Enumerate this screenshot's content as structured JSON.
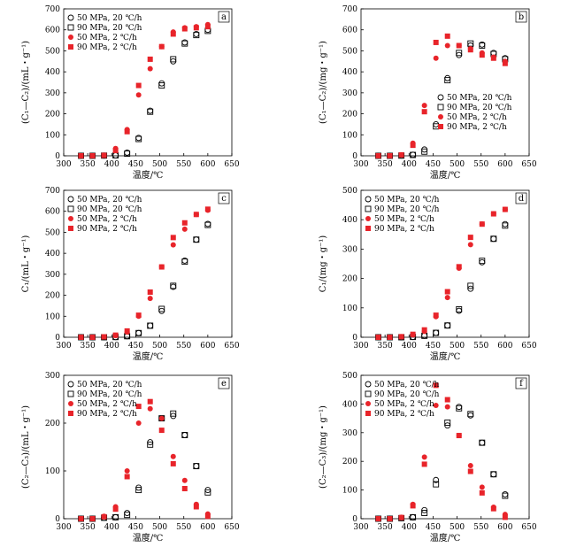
{
  "chart_data": [
    {
      "type": "scatter",
      "panel_label": "a",
      "xlabel": "温度/℃",
      "ylabel": "(C₁—C₂)/(mL・g⁻¹)",
      "xlim": [
        300,
        650
      ],
      "ylim": [
        0,
        700
      ],
      "x_ticks": [
        300,
        350,
        400,
        450,
        500,
        550,
        600,
        650
      ],
      "y_ticks": [
        0,
        100,
        200,
        300,
        400,
        500,
        600,
        700
      ],
      "legend_position": "top-left",
      "series": [
        {
          "name": "50 MPa, 20 ℃/h",
          "marker": "open-circle",
          "x": [
            336,
            360,
            384,
            408,
            432,
            456,
            480,
            504,
            528,
            552,
            576,
            600
          ],
          "y": [
            0,
            0,
            1,
            2,
            15,
            85,
            215,
            345,
            450,
            540,
            580,
            600
          ]
        },
        {
          "name": "90 MPa, 20 ℃/h",
          "marker": "open-square",
          "x": [
            336,
            360,
            384,
            408,
            432,
            456,
            480,
            504,
            528,
            552,
            576,
            600
          ],
          "y": [
            0,
            0,
            1,
            2,
            10,
            80,
            210,
            335,
            460,
            535,
            575,
            595
          ]
        },
        {
          "name": "50 MPa, 2 ℃/h",
          "marker": "filled-circle",
          "x": [
            336,
            360,
            384,
            408,
            432,
            456,
            480,
            504,
            528,
            552,
            576,
            600
          ],
          "y": [
            0,
            0,
            3,
            35,
            125,
            290,
            415,
            520,
            590,
            610,
            615,
            625
          ]
        },
        {
          "name": "90 MPa, 2 ℃/h",
          "marker": "filled-square",
          "x": [
            336,
            360,
            384,
            408,
            432,
            456,
            480,
            504,
            528,
            552,
            576,
            600
          ],
          "y": [
            0,
            0,
            2,
            25,
            115,
            335,
            460,
            520,
            580,
            605,
            610,
            615
          ]
        }
      ]
    },
    {
      "type": "scatter",
      "panel_label": "b",
      "xlabel": "温度/℃",
      "ylabel": "(C₁—C₂)/(mg・g⁻¹)",
      "xlim": [
        300,
        650
      ],
      "ylim": [
        0,
        700
      ],
      "x_ticks": [
        300,
        350,
        400,
        450,
        500,
        550,
        600,
        650
      ],
      "y_ticks": [
        0,
        100,
        200,
        300,
        400,
        500,
        600,
        700
      ],
      "legend_position": "bottom-center",
      "series": [
        {
          "name": "50 MPa, 20 ℃/h",
          "marker": "open-circle",
          "x": [
            336,
            360,
            384,
            408,
            432,
            456,
            480,
            504,
            528,
            552,
            576,
            600
          ],
          "y": [
            0,
            0,
            1,
            5,
            30,
            150,
            370,
            480,
            525,
            530,
            490,
            465
          ]
        },
        {
          "name": "90 MPa, 20 ℃/h",
          "marker": "open-square",
          "x": [
            336,
            360,
            384,
            408,
            432,
            456,
            480,
            504,
            528,
            552,
            576,
            600
          ],
          "y": [
            0,
            0,
            1,
            4,
            20,
            140,
            360,
            490,
            535,
            525,
            485,
            460
          ]
        },
        {
          "name": "50 MPa, 2 ℃/h",
          "marker": "filled-circle",
          "x": [
            336,
            360,
            384,
            408,
            432,
            456,
            480,
            504,
            528,
            552,
            576,
            600
          ],
          "y": [
            0,
            0,
            5,
            60,
            240,
            465,
            525,
            525,
            510,
            490,
            470,
            450
          ]
        },
        {
          "name": "90 MPa, 2 ℃/h",
          "marker": "filled-square",
          "x": [
            336,
            360,
            384,
            408,
            432,
            456,
            480,
            504,
            528,
            552,
            576,
            600
          ],
          "y": [
            0,
            0,
            4,
            50,
            210,
            540,
            570,
            525,
            505,
            480,
            465,
            440
          ]
        }
      ]
    },
    {
      "type": "scatter",
      "panel_label": "c",
      "xlabel": "温度/℃",
      "ylabel": "C₁/(mL・g⁻¹)",
      "xlim": [
        300,
        650
      ],
      "ylim": [
        0,
        700
      ],
      "x_ticks": [
        300,
        350,
        400,
        450,
        500,
        550,
        600,
        650
      ],
      "y_ticks": [
        0,
        100,
        200,
        300,
        400,
        500,
        600,
        700
      ],
      "legend_position": "top-left",
      "series": [
        {
          "name": "50 MPa, 20 ℃/h",
          "marker": "open-circle",
          "x": [
            336,
            360,
            384,
            408,
            432,
            456,
            480,
            504,
            528,
            552,
            576,
            600
          ],
          "y": [
            0,
            0,
            0,
            1,
            5,
            20,
            55,
            125,
            240,
            365,
            465,
            540
          ]
        },
        {
          "name": "90 MPa, 20 ℃/h",
          "marker": "open-square",
          "x": [
            336,
            360,
            384,
            408,
            432,
            456,
            480,
            504,
            528,
            552,
            576,
            600
          ],
          "y": [
            0,
            0,
            0,
            1,
            5,
            20,
            55,
            135,
            245,
            360,
            465,
            535
          ]
        },
        {
          "name": "50 MPa, 2 ℃/h",
          "marker": "filled-circle",
          "x": [
            336,
            360,
            384,
            408,
            432,
            456,
            480,
            504,
            528,
            552,
            576,
            600
          ],
          "y": [
            0,
            0,
            2,
            8,
            25,
            100,
            185,
            335,
            440,
            515,
            585,
            605
          ]
        },
        {
          "name": "90 MPa, 2 ℃/h",
          "marker": "filled-square",
          "x": [
            336,
            360,
            384,
            408,
            432,
            456,
            480,
            504,
            528,
            552,
            576,
            600
          ],
          "y": [
            0,
            0,
            2,
            10,
            30,
            105,
            215,
            335,
            475,
            545,
            585,
            610
          ]
        }
      ]
    },
    {
      "type": "scatter",
      "panel_label": "d",
      "xlabel": "温度/℃",
      "ylabel": "C₁/(mg・g⁻¹)",
      "xlim": [
        300,
        650
      ],
      "ylim": [
        0,
        500
      ],
      "x_ticks": [
        300,
        350,
        400,
        450,
        500,
        550,
        600,
        650
      ],
      "y_ticks": [
        0,
        100,
        200,
        300,
        400,
        500
      ],
      "legend_position": "top-left",
      "series": [
        {
          "name": "50 MPa, 20 ℃/h",
          "marker": "open-circle",
          "x": [
            336,
            360,
            384,
            408,
            432,
            456,
            480,
            504,
            528,
            552,
            576,
            600
          ],
          "y": [
            0,
            0,
            0,
            1,
            5,
            15,
            40,
            90,
            165,
            255,
            335,
            385
          ]
        },
        {
          "name": "90 MPa, 20 ℃/h",
          "marker": "open-square",
          "x": [
            336,
            360,
            384,
            408,
            432,
            456,
            480,
            504,
            528,
            552,
            576,
            600
          ],
          "y": [
            0,
            0,
            0,
            1,
            5,
            15,
            40,
            95,
            175,
            260,
            335,
            380
          ]
        },
        {
          "name": "50 MPa, 2 ℃/h",
          "marker": "filled-circle",
          "x": [
            336,
            360,
            384,
            408,
            432,
            456,
            480,
            504,
            528,
            552,
            576,
            600
          ],
          "y": [
            0,
            0,
            2,
            8,
            20,
            70,
            135,
            235,
            315,
            385,
            420,
            435
          ]
        },
        {
          "name": "90 MPa, 2 ℃/h",
          "marker": "filled-square",
          "x": [
            336,
            360,
            384,
            408,
            432,
            456,
            480,
            504,
            528,
            552,
            576,
            600
          ],
          "y": [
            0,
            0,
            2,
            10,
            25,
            75,
            155,
            240,
            340,
            385,
            420,
            435
          ]
        }
      ]
    },
    {
      "type": "scatter",
      "panel_label": "e",
      "xlabel": "温度/℃",
      "ylabel": "(C₂—C₃)/(mL・g⁻¹)",
      "xlim": [
        300,
        650
      ],
      "ylim": [
        0,
        300
      ],
      "x_ticks": [
        300,
        350,
        400,
        450,
        500,
        550,
        600,
        650
      ],
      "y_ticks": [
        0,
        100,
        200,
        300
      ],
      "legend_position": "top-left",
      "series": [
        {
          "name": "50 MPa, 20 ℃/h",
          "marker": "open-circle",
          "x": [
            336,
            360,
            384,
            408,
            432,
            456,
            480,
            504,
            528,
            552,
            576,
            600
          ],
          "y": [
            0,
            0,
            2,
            3,
            12,
            65,
            160,
            210,
            215,
            175,
            110,
            60
          ]
        },
        {
          "name": "90 MPa, 20 ℃/h",
          "marker": "open-square",
          "x": [
            336,
            360,
            384,
            408,
            432,
            456,
            480,
            504,
            528,
            552,
            576,
            600
          ],
          "y": [
            0,
            0,
            2,
            3,
            8,
            60,
            155,
            210,
            220,
            175,
            110,
            55
          ]
        },
        {
          "name": "50 MPa, 2 ℃/h",
          "marker": "filled-circle",
          "x": [
            336,
            360,
            384,
            408,
            432,
            456,
            480,
            504,
            528,
            552,
            576,
            600
          ],
          "y": [
            0,
            0,
            5,
            25,
            100,
            200,
            230,
            210,
            130,
            80,
            30,
            10
          ]
        },
        {
          "name": "90 MPa, 2 ℃/h",
          "marker": "filled-square",
          "x": [
            336,
            360,
            384,
            408,
            432,
            456,
            480,
            504,
            528,
            552,
            576,
            600
          ],
          "y": [
            0,
            0,
            4,
            20,
            88,
            235,
            245,
            185,
            115,
            63,
            25,
            5
          ]
        }
      ]
    },
    {
      "type": "scatter",
      "panel_label": "f",
      "xlabel": "温度/℃",
      "ylabel": "(C₂—C₃)/(mg・g⁻¹)",
      "xlim": [
        300,
        650
      ],
      "ylim": [
        0,
        500
      ],
      "x_ticks": [
        300,
        350,
        400,
        450,
        500,
        550,
        600,
        650
      ],
      "y_ticks": [
        0,
        100,
        200,
        300,
        400,
        500
      ],
      "legend_position": "top-left",
      "series": [
        {
          "name": "50 MPa, 20 ℃/h",
          "marker": "open-circle",
          "x": [
            336,
            360,
            384,
            408,
            432,
            456,
            480,
            504,
            528,
            552,
            576,
            600
          ],
          "y": [
            0,
            0,
            2,
            5,
            30,
            135,
            325,
            390,
            360,
            265,
            155,
            85
          ]
        },
        {
          "name": "90 MPa, 20 ℃/h",
          "marker": "open-square",
          "x": [
            336,
            360,
            384,
            408,
            432,
            456,
            480,
            504,
            528,
            552,
            576,
            600
          ],
          "y": [
            0,
            0,
            2,
            5,
            20,
            120,
            335,
            385,
            365,
            265,
            155,
            80
          ]
        },
        {
          "name": "50 MPa, 2 ℃/h",
          "marker": "filled-circle",
          "x": [
            336,
            360,
            384,
            408,
            432,
            456,
            480,
            504,
            528,
            552,
            576,
            600
          ],
          "y": [
            0,
            0,
            5,
            50,
            215,
            395,
            390,
            290,
            185,
            110,
            40,
            15
          ]
        },
        {
          "name": "90 MPa, 2 ℃/h",
          "marker": "filled-square",
          "x": [
            336,
            360,
            384,
            408,
            432,
            456,
            480,
            504,
            528,
            552,
            576,
            600
          ],
          "y": [
            0,
            0,
            4,
            45,
            190,
            465,
            415,
            290,
            165,
            90,
            35,
            5
          ]
        }
      ]
    }
  ]
}
